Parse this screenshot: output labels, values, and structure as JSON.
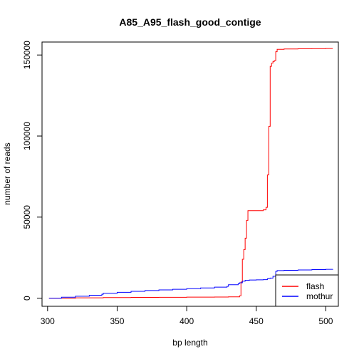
{
  "chart_data": {
    "type": "line",
    "title": "A85_A95_flash_good_contige",
    "xlabel": "bp length",
    "ylabel": "number of reads",
    "xlim": [
      296,
      509
    ],
    "ylim": [
      -5000,
      158000
    ],
    "xticks": [
      300,
      350,
      400,
      450,
      500
    ],
    "yticks": [
      0,
      50000,
      100000,
      150000
    ],
    "grid": false,
    "legend_position": "bottom-right",
    "series": [
      {
        "name": "flash",
        "color": "#ff0000",
        "step": true,
        "x": [
          301,
          320,
          340,
          360,
          380,
          400,
          420,
          430,
          438,
          439,
          440,
          441,
          442,
          443,
          444,
          445,
          450,
          455,
          457,
          458,
          459,
          460,
          461,
          462,
          463,
          464,
          465,
          470,
          480,
          490,
          500,
          505
        ],
        "y": [
          0,
          200,
          400,
          500,
          550,
          650,
          700,
          800,
          1500,
          10000,
          24000,
          30000,
          37000,
          48000,
          54000,
          54000,
          54000,
          54500,
          56000,
          76000,
          106000,
          143000,
          145000,
          146000,
          146500,
          152000,
          153500,
          153700,
          153800,
          153900,
          154000,
          154000
        ]
      },
      {
        "name": "mothur",
        "color": "#0000ff",
        "step": true,
        "x": [
          301,
          310,
          320,
          330,
          339,
          340,
          350,
          360,
          370,
          380,
          390,
          400,
          410,
          420,
          429,
          430,
          437,
          438,
          440,
          442,
          445,
          450,
          455,
          458,
          459,
          460,
          462,
          464,
          465,
          470,
          480,
          490,
          500,
          505
        ],
        "y": [
          0,
          600,
          1200,
          1800,
          2400,
          3000,
          3600,
          4200,
          4700,
          5100,
          5500,
          5900,
          6300,
          6800,
          7300,
          8300,
          9000,
          9500,
          10500,
          11000,
          11200,
          11300,
          11400,
          12000,
          12200,
          12400,
          13500,
          16500,
          17000,
          17200,
          17400,
          17600,
          17800,
          17900
        ]
      }
    ]
  }
}
